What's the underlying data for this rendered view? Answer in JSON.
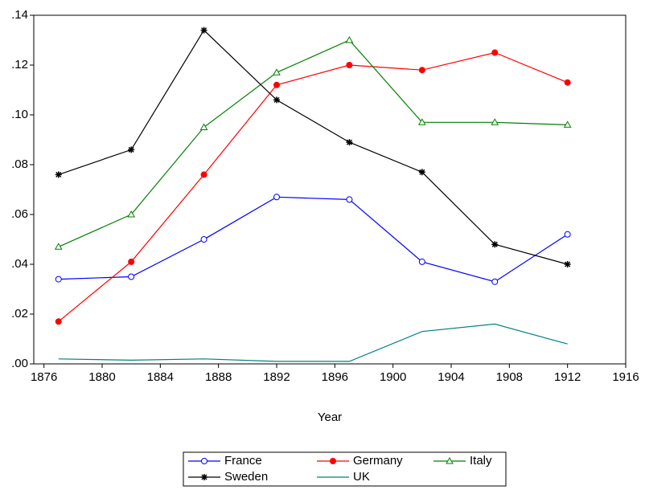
{
  "chart_data": {
    "type": "line",
    "x_label": "Year",
    "x": [
      1877,
      1882,
      1887,
      1892,
      1897,
      1902,
      1907,
      1912
    ],
    "series": [
      {
        "name": "France",
        "color": "#0000ff",
        "marker": "open-circle",
        "values": [
          0.034,
          0.035,
          0.05,
          0.067,
          0.066,
          0.041,
          0.033,
          0.052
        ]
      },
      {
        "name": "Germany",
        "color": "#ff0000",
        "marker": "filled-circle",
        "values": [
          0.017,
          0.041,
          0.076,
          0.112,
          0.12,
          0.118,
          0.125,
          0.113
        ]
      },
      {
        "name": "Italy",
        "color": "#008000",
        "marker": "open-triangle",
        "values": [
          0.047,
          0.06,
          0.095,
          0.117,
          0.13,
          0.097,
          0.097,
          0.096
        ]
      },
      {
        "name": "Sweden",
        "color": "#000000",
        "marker": "asterisk",
        "values": [
          0.076,
          0.086,
          0.134,
          0.106,
          0.089,
          0.077,
          0.048,
          0.04
        ]
      },
      {
        "name": "UK",
        "color": "#008080",
        "marker": "none",
        "values": [
          0.002,
          0.0015,
          0.002,
          0.001,
          0.001,
          0.013,
          0.016,
          0.008
        ]
      }
    ],
    "xlim": [
      1875.3,
      1916
    ],
    "xticks": [
      1876,
      1880,
      1884,
      1888,
      1892,
      1896,
      1900,
      1904,
      1908,
      1912,
      1916
    ],
    "ylim": [
      0,
      0.14
    ],
    "yticks": [
      {
        "value": 0,
        "label": ".00"
      },
      {
        "value": 0.02,
        "label": ".02"
      },
      {
        "value": 0.04,
        "label": ".04"
      },
      {
        "value": 0.06,
        "label": ".06"
      },
      {
        "value": 0.08,
        "label": ".08"
      },
      {
        "value": 0.1,
        "label": ".10"
      },
      {
        "value": 0.12,
        "label": ".12"
      },
      {
        "value": 0.14,
        "label": ".14"
      }
    ]
  }
}
